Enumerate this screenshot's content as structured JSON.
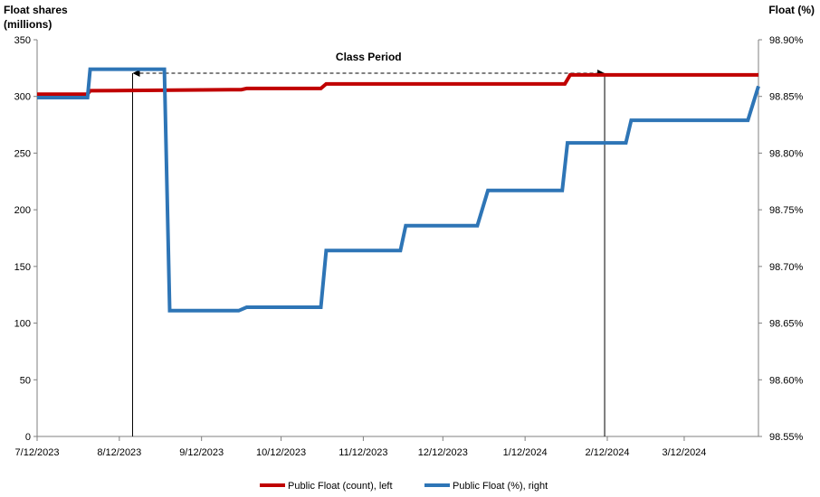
{
  "chart_data": {
    "type": "line",
    "left_axis": {
      "title_line1": "Float shares",
      "title_line2": "(millions)",
      "ylim": [
        0,
        350
      ],
      "ticks": [
        0,
        50,
        100,
        150,
        200,
        250,
        300,
        350
      ],
      "tick_labels": [
        "0",
        "50",
        "100",
        "150",
        "200",
        "250",
        "300",
        "350"
      ]
    },
    "right_axis": {
      "title": "Float (%)",
      "ylim": [
        98.55,
        98.9
      ],
      "ticks": [
        98.55,
        98.6,
        98.65,
        98.7,
        98.75,
        98.8,
        98.85,
        98.9
      ],
      "tick_labels": [
        "98.55%",
        "98.60%",
        "98.65%",
        "98.70%",
        "98.75%",
        "98.80%",
        "98.85%",
        "98.90%"
      ]
    },
    "x_axis": {
      "start": "2023-07-12",
      "end": "2024-04-09",
      "ticks": [
        "2023-07-12",
        "2023-08-12",
        "2023-09-12",
        "2023-10-12",
        "2023-11-12",
        "2023-12-12",
        "2024-01-12",
        "2024-02-12",
        "2024-03-12"
      ],
      "tick_labels": [
        "7/12/2023",
        "8/12/2023",
        "9/12/2023",
        "10/12/2023",
        "11/12/2023",
        "12/12/2023",
        "1/12/2024",
        "2/12/2024",
        "3/12/2024"
      ]
    },
    "class_period": {
      "label": "Class Period",
      "start": "2023-08-17",
      "end": "2024-02-11"
    },
    "series": [
      {
        "name": "Public Float (count), left",
        "axis": "left",
        "color": "#c00000",
        "step": true,
        "points": [
          [
            "2023-07-12",
            302
          ],
          [
            "2023-07-31",
            302
          ],
          [
            "2023-08-01",
            305
          ],
          [
            "2023-09-27",
            306
          ],
          [
            "2023-09-29",
            307
          ],
          [
            "2023-10-27",
            307
          ],
          [
            "2023-10-29",
            311
          ],
          [
            "2024-01-27",
            311
          ],
          [
            "2024-01-29",
            319
          ],
          [
            "2024-04-09",
            319
          ]
        ]
      },
      {
        "name": "Public Float (%), right",
        "axis": "right",
        "color": "#2e75b6",
        "step": true,
        "points": [
          [
            "2023-07-12",
            98.849
          ],
          [
            "2023-07-31",
            98.849
          ],
          [
            "2023-08-01",
            98.874
          ],
          [
            "2023-08-29",
            98.874
          ],
          [
            "2023-08-31",
            98.661
          ],
          [
            "2023-09-26",
            98.661
          ],
          [
            "2023-09-29",
            98.664
          ],
          [
            "2023-10-27",
            98.664
          ],
          [
            "2023-10-29",
            98.714
          ],
          [
            "2023-11-26",
            98.714
          ],
          [
            "2023-11-28",
            98.736
          ],
          [
            "2023-12-25",
            98.736
          ],
          [
            "2023-12-29",
            98.767
          ],
          [
            "2024-01-26",
            98.767
          ],
          [
            "2024-01-28",
            98.809
          ],
          [
            "2024-02-19",
            98.809
          ],
          [
            "2024-02-21",
            98.829
          ],
          [
            "2024-04-05",
            98.829
          ],
          [
            "2024-04-09",
            98.859
          ]
        ]
      }
    ],
    "legend_position": "bottom",
    "grid": false
  }
}
